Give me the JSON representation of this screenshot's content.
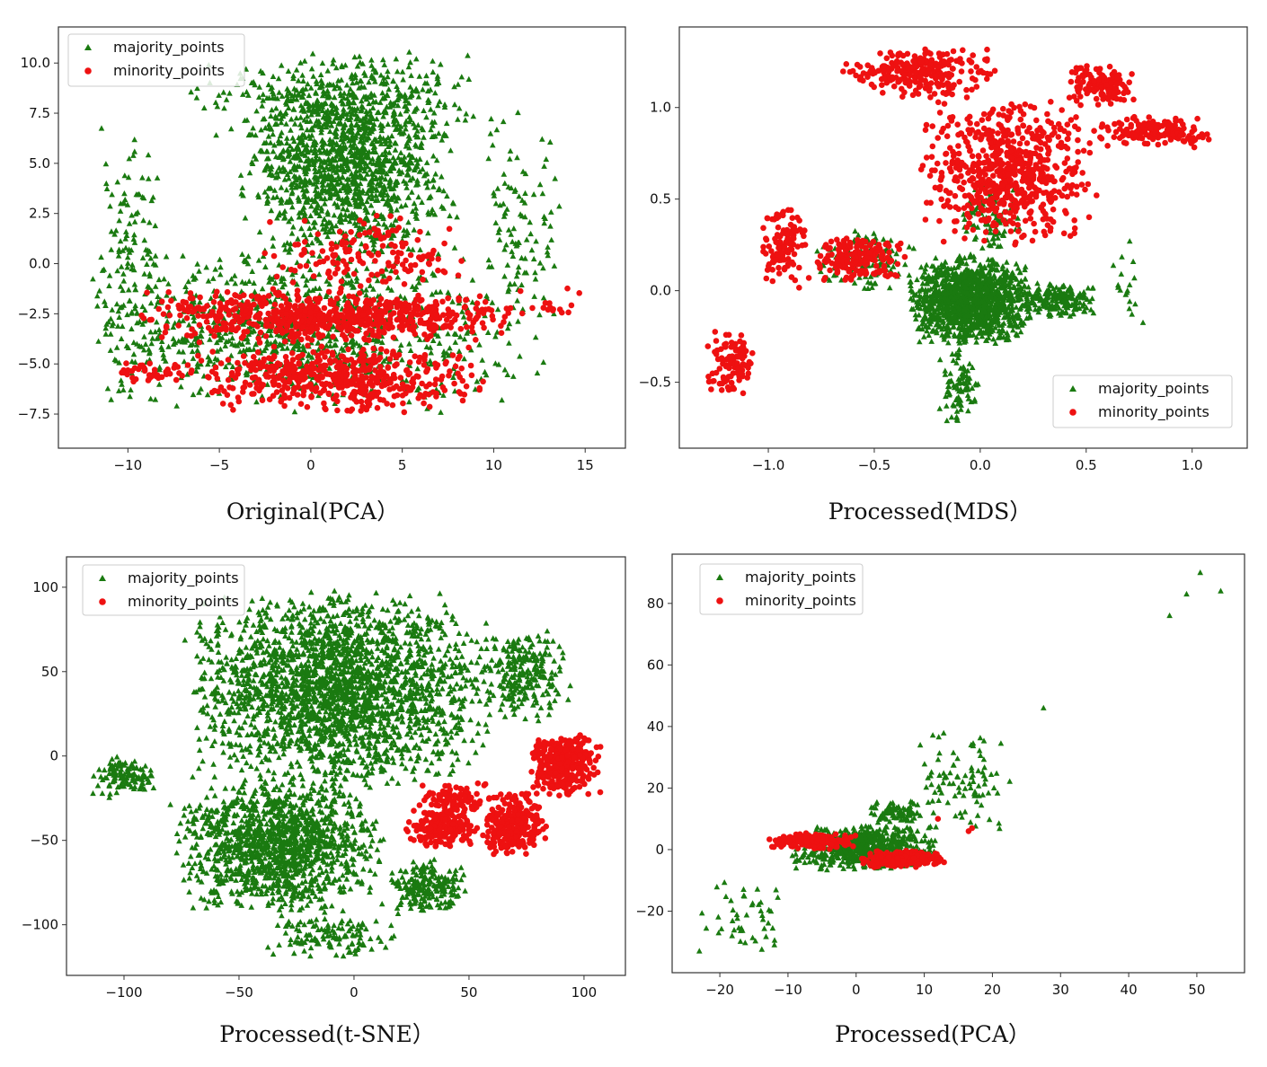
{
  "colors": {
    "majority": "#1a7a10",
    "minority": "#ee1111",
    "frame": "#333333"
  },
  "chart_data": [
    {
      "type": "scatter",
      "caption": "Original(PCA）",
      "xlim": [
        -13.8,
        17.2
      ],
      "ylim": [
        -9.2,
        11.8
      ],
      "xticks": [
        -10,
        -5,
        0,
        5,
        10,
        15
      ],
      "yticks": [
        -7.5,
        -5.0,
        -2.5,
        0.0,
        2.5,
        5.0,
        7.5,
        10.0
      ],
      "legend_placement": "top-left",
      "series": [
        {
          "name": "majority_points",
          "marker": "triangle",
          "clusters": [
            {
              "x": [
                -4,
                8
              ],
              "y": [
                0,
                10
              ],
              "n": 1300
            },
            {
              "x": [
                -12,
                11
              ],
              "y": [
                -7.5,
                1
              ],
              "n": 900
            },
            {
              "x": [
                -12,
                -8
              ],
              "y": [
                -7,
                7
              ],
              "n": 140
            },
            {
              "x": [
                9,
                14
              ],
              "y": [
                -6,
                8
              ],
              "n": 120
            },
            {
              "x": [
                -7,
                10
              ],
              "y": [
                6,
                10.8
              ],
              "n": 260
            }
          ]
        },
        {
          "name": "minority_points",
          "marker": "circle",
          "clusters": [
            {
              "x": [
                -10,
                12
              ],
              "y": [
                -4,
                -1.2
              ],
              "n": 650
            },
            {
              "x": [
                -7,
                10
              ],
              "y": [
                -7.5,
                -4
              ],
              "n": 500
            },
            {
              "x": [
                -3,
                9
              ],
              "y": [
                -1.5,
                2.5
              ],
              "n": 150
            },
            {
              "x": [
                -11,
                -7
              ],
              "y": [
                -6,
                -4.8
              ],
              "n": 40
            },
            {
              "x": [
                12,
                15
              ],
              "y": [
                -3,
                -1
              ],
              "n": 15
            }
          ]
        }
      ]
    },
    {
      "type": "scatter",
      "caption": "Processed(MDS）",
      "xlim": [
        -1.42,
        1.26
      ],
      "ylim": [
        -0.86,
        1.44
      ],
      "xticks": [
        -1.0,
        -0.5,
        0.0,
        0.5,
        1.0
      ],
      "yticks": [
        -0.5,
        0.0,
        0.5,
        1.0
      ],
      "legend_placement": "bottom-right",
      "series": [
        {
          "name": "majority_points",
          "marker": "triangle",
          "clusters": [
            {
              "x": [
                -0.35,
                0.25
              ],
              "y": [
                -0.3,
                0.2
              ],
              "n": 1300
            },
            {
              "x": [
                0.2,
                0.55
              ],
              "y": [
                -0.15,
                0.05
              ],
              "n": 200
            },
            {
              "x": [
                -0.2,
                0.0
              ],
              "y": [
                -0.75,
                -0.3
              ],
              "n": 90
            },
            {
              "x": [
                -0.8,
                -0.3
              ],
              "y": [
                0.0,
                0.35
              ],
              "n": 120
            },
            {
              "x": [
                -0.1,
                0.2
              ],
              "y": [
                0.2,
                0.6
              ],
              "n": 100
            },
            {
              "x": [
                0.6,
                0.8
              ],
              "y": [
                -0.18,
                0.3
              ],
              "n": 18
            }
          ]
        },
        {
          "name": "minority_points",
          "marker": "circle",
          "clusters": [
            {
              "x": [
                -1.3,
                -1.05
              ],
              "y": [
                -0.6,
                -0.2
              ],
              "n": 100
            },
            {
              "x": [
                -1.05,
                -0.8
              ],
              "y": [
                0.0,
                0.45
              ],
              "n": 110
            },
            {
              "x": [
                -0.8,
                -0.35
              ],
              "y": [
                0.05,
                0.3
              ],
              "n": 180
            },
            {
              "x": [
                -0.3,
                0.55
              ],
              "y": [
                0.25,
                1.05
              ],
              "n": 650
            },
            {
              "x": [
                -0.65,
                0.1
              ],
              "y": [
                1.05,
                1.33
              ],
              "n": 260
            },
            {
              "x": [
                0.5,
                1.1
              ],
              "y": [
                0.78,
                0.95
              ],
              "n": 150
            },
            {
              "x": [
                0.4,
                0.75
              ],
              "y": [
                1.0,
                1.25
              ],
              "n": 120
            }
          ]
        }
      ]
    },
    {
      "type": "scatter",
      "caption": "Processed(t-SNE）",
      "xlim": [
        -125,
        118
      ],
      "ylim": [
        -130,
        118
      ],
      "xticks": [
        -100,
        -50,
        0,
        50,
        100
      ],
      "yticks": [
        -100,
        -50,
        0,
        50,
        100
      ],
      "legend_placement": "top-left",
      "series": [
        {
          "name": "majority_points",
          "marker": "triangle",
          "clusters": [
            {
              "x": [
                -75,
                60
              ],
              "y": [
                -20,
                100
              ],
              "n": 2200
            },
            {
              "x": [
                -80,
                15
              ],
              "y": [
                -95,
                -10
              ],
              "n": 1300
            },
            {
              "x": [
                15,
                50
              ],
              "y": [
                -95,
                -60
              ],
              "n": 200
            },
            {
              "x": [
                -115,
                -85
              ],
              "y": [
                -25,
                0
              ],
              "n": 120
            },
            {
              "x": [
                50,
                95
              ],
              "y": [
                20,
                75
              ],
              "n": 250
            },
            {
              "x": [
                -40,
                20
              ],
              "y": [
                -120,
                -95
              ],
              "n": 120
            }
          ]
        },
        {
          "name": "minority_points",
          "marker": "circle",
          "clusters": [
            {
              "x": [
                75,
                108
              ],
              "y": [
                -25,
                15
              ],
              "n": 320
            },
            {
              "x": [
                55,
                85
              ],
              "y": [
                -60,
                -20
              ],
              "n": 260
            },
            {
              "x": [
                22,
                55
              ],
              "y": [
                -55,
                -30
              ],
              "n": 200
            },
            {
              "x": [
                28,
                60
              ],
              "y": [
                -35,
                -15
              ],
              "n": 90
            }
          ]
        }
      ]
    },
    {
      "type": "scatter",
      "caption": "Processed(PCA）",
      "xlim": [
        -27,
        57
      ],
      "ylim": [
        -40,
        96
      ],
      "xticks": [
        -20,
        -10,
        0,
        10,
        20,
        30,
        40,
        50
      ],
      "yticks": [
        -20,
        0,
        20,
        40,
        60,
        80
      ],
      "legend_placement": "top-left",
      "series": [
        {
          "name": "majority_points",
          "marker": "triangle",
          "clusters": [
            {
              "x": [
                -10,
                12
              ],
              "y": [
                -7,
                8
              ],
              "n": 700
            },
            {
              "x": [
                -24,
                -10
              ],
              "y": [
                -33,
                -8
              ],
              "n": 45
            },
            {
              "x": [
                8,
                23
              ],
              "y": [
                5,
                40
              ],
              "n": 90
            },
            {
              "x": [
                2,
                10
              ],
              "y": [
                8,
                16
              ],
              "n": 80
            }
          ],
          "points": [
            [
              27.5,
              46
            ],
            [
              46,
              76
            ],
            [
              48.5,
              83
            ],
            [
              50.5,
              90
            ],
            [
              53.5,
              84
            ],
            [
              -12,
              -31
            ],
            [
              -23,
              -33
            ]
          ]
        },
        {
          "name": "minority_points",
          "marker": "circle",
          "clusters": [
            {
              "x": [
                -13,
                1
              ],
              "y": [
                0,
                5.5
              ],
              "n": 200
            },
            {
              "x": [
                0,
                13
              ],
              "y": [
                -6,
                0
              ],
              "n": 220
            }
          ],
          "points": [
            [
              12,
              10
            ],
            [
              17,
              7
            ],
            [
              16.5,
              6
            ]
          ]
        }
      ]
    }
  ]
}
